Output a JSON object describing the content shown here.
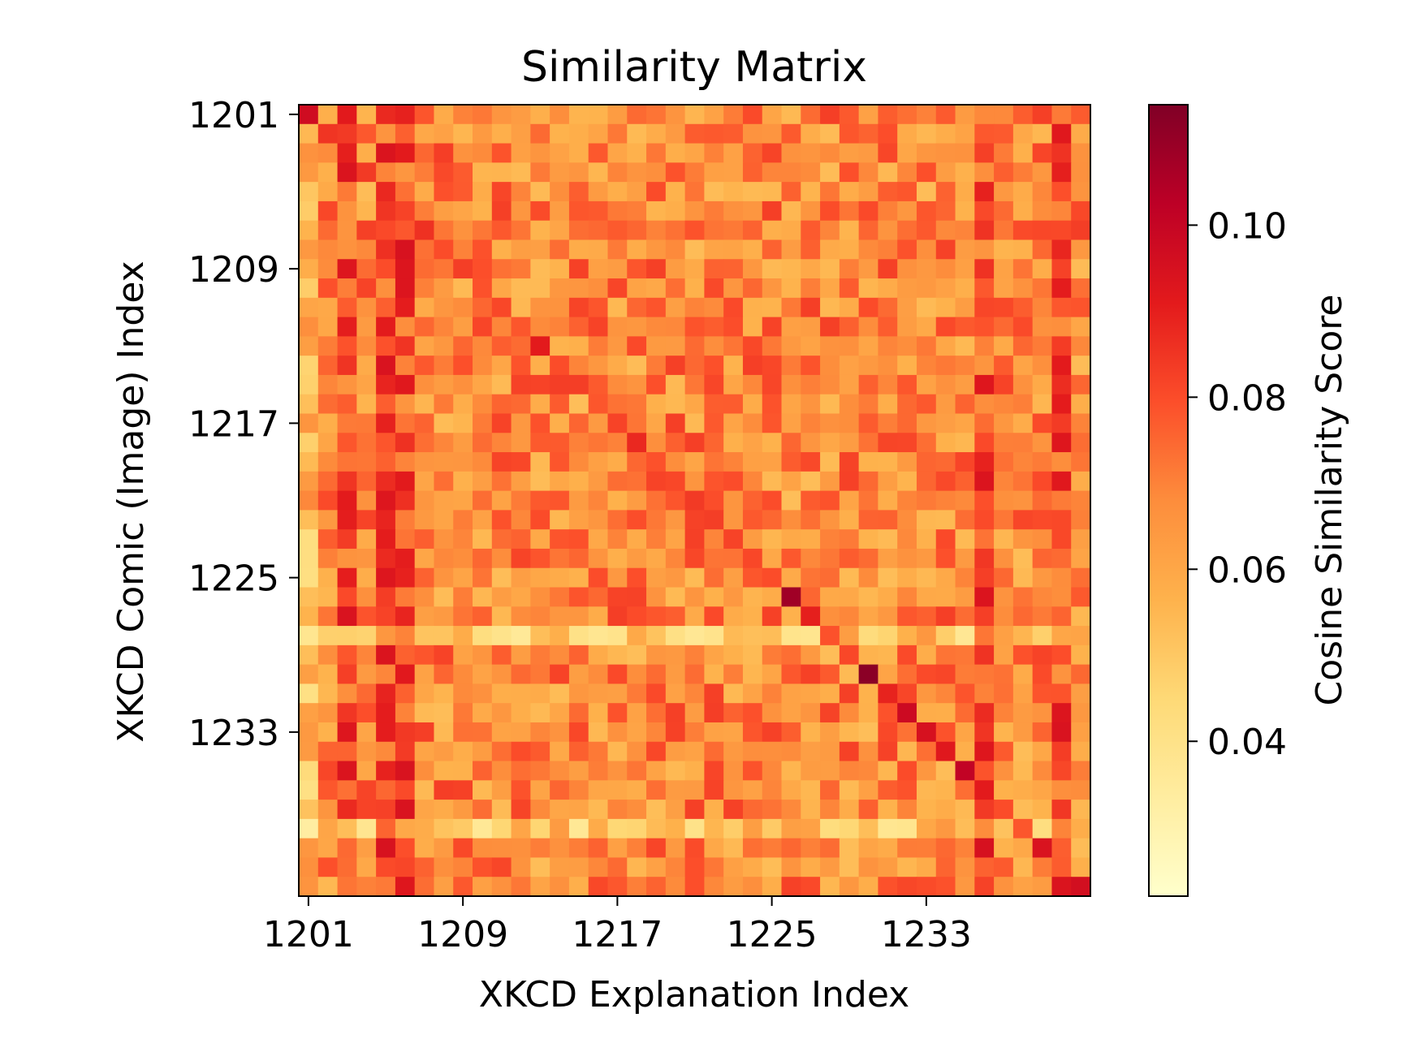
{
  "chart_data": {
    "type": "heatmap",
    "title": "Similarity Matrix",
    "xlabel": "XKCD Explanation Index",
    "ylabel": "XKCD Comic (Image) Index",
    "x_tick_labels": [
      "1201",
      "1209",
      "1217",
      "1225",
      "1233"
    ],
    "y_tick_labels": [
      "1201",
      "1209",
      "1217",
      "1225",
      "1233"
    ],
    "rows_start": 1201,
    "cols_start": 1201,
    "colorbar": {
      "label": "Cosine Similarity Score",
      "ticks": [
        0.04,
        0.06,
        0.08,
        0.1
      ],
      "tick_labels": [
        "0.04",
        "0.06",
        "0.08",
        "0.10"
      ],
      "range": [
        0.022,
        0.114
      ],
      "colormap": "YlOrRd",
      "colors": [
        "#ffffcc",
        "#ffeda0",
        "#fed976",
        "#feb24c",
        "#fd8d3c",
        "#fc4e2a",
        "#e31a1c",
        "#bd0026",
        "#800026"
      ]
    },
    "grid": false,
    "diagonal": [
      0.097,
      0.085,
      0.09,
      0.084,
      0.088,
      0.082,
      0.086,
      0.08,
      0.083,
      0.079,
      0.081,
      0.078,
      0.091,
      0.08,
      0.083,
      0.078,
      0.082,
      0.088,
      0.079,
      0.081,
      0.084,
      0.083,
      0.082,
      0.081,
      0.08,
      0.108,
      0.09,
      0.079,
      0.081,
      0.112,
      0.089,
      0.098,
      0.095,
      0.092,
      0.101,
      0.091,
      0.08,
      0.078,
      0.094,
      0.077,
      0.096
    ],
    "matrix_note_values": {
      "median": 0.068,
      "hot_columns": [
        1203,
        1205,
        1206,
        1236,
        1240
      ],
      "cool_rows": [
        1228,
        1238
      ]
    }
  }
}
